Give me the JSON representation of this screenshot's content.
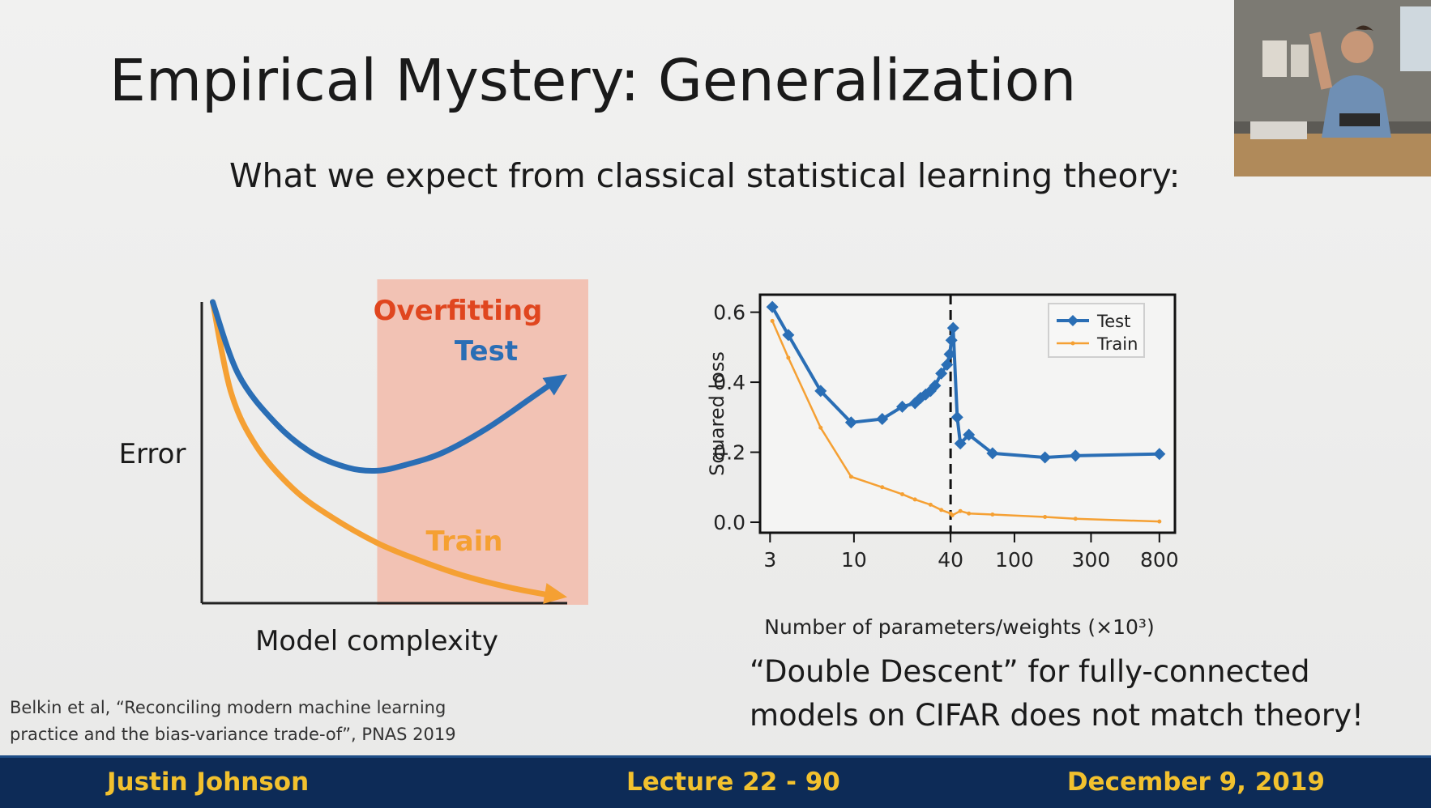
{
  "slide": {
    "title": "Empirical Mystery: Generalization",
    "subtitle": "What we expect from classical statistical learning theory:",
    "citation_line1": "Belkin et al, “Reconciling modern machine learning",
    "citation_line2": "practice and the bias-variance trade-of”, PNAS 2019",
    "caption_line1": "“Double Descent” for fully-connected",
    "caption_line2": "models on CIFAR does not match theory!"
  },
  "footer": {
    "author": "Justin Johnson",
    "lecture": "Lecture 22 - 90",
    "date": "December 9, 2019"
  },
  "colors": {
    "test_blue": "#2a6eb5",
    "train_orange": "#f5a033",
    "overfit_shade": "#f2c2b4",
    "overfit_label": "#e0461f",
    "footer_bg": "#0d2b57",
    "footer_text": "#f2c12e"
  },
  "chart_data": [
    {
      "type": "line",
      "title": "",
      "xlabel": "Model complexity",
      "ylabel": "Error",
      "annotations": [
        "Overfitting",
        "Test",
        "Train"
      ],
      "region": {
        "label": "Overfitting",
        "x_range": [
          0.48,
          1.0
        ]
      },
      "xlim": [
        0,
        1
      ],
      "ylim": [
        0,
        1
      ],
      "series": [
        {
          "name": "Test",
          "x": [
            0.03,
            0.1,
            0.2,
            0.3,
            0.4,
            0.48,
            0.56,
            0.66,
            0.78,
            0.9,
            1.0
          ],
          "y": [
            1.0,
            0.76,
            0.6,
            0.5,
            0.45,
            0.44,
            0.46,
            0.5,
            0.58,
            0.68,
            0.76
          ]
        },
        {
          "name": "Train",
          "x": [
            0.03,
            0.08,
            0.15,
            0.25,
            0.35,
            0.48,
            0.6,
            0.72,
            0.85,
            1.0
          ],
          "y": [
            1.0,
            0.7,
            0.52,
            0.38,
            0.29,
            0.2,
            0.14,
            0.09,
            0.05,
            0.02
          ]
        }
      ]
    },
    {
      "type": "line",
      "title": "",
      "xlabel": "Number of parameters/weights (×10³)",
      "ylabel": "Squared loss",
      "x_scale": "log",
      "xlim": [
        2.6,
        1000
      ],
      "ylim": [
        -0.03,
        0.65
      ],
      "xticks": [
        3,
        10,
        40,
        100,
        300,
        800
      ],
      "xtick_labels": [
        "3",
        "10",
        "40",
        "100",
        "300",
        "800"
      ],
      "yticks": [
        0.0,
        0.2,
        0.4,
        0.6
      ],
      "ytick_labels": [
        "0.0",
        "0.2",
        "0.4",
        "0.6"
      ],
      "legend_position": "top-right",
      "interpolation_threshold_x": 40,
      "series": [
        {
          "name": "Test",
          "x": [
            3.1,
            3.9,
            6.2,
            9.6,
            15,
            20,
            24,
            26,
            28,
            30,
            32,
            35,
            38,
            39.5,
            40.5,
            41.5,
            44,
            46,
            52,
            73,
            155,
            240,
            800
          ],
          "y": [
            0.615,
            0.535,
            0.375,
            0.285,
            0.295,
            0.33,
            0.34,
            0.355,
            0.365,
            0.375,
            0.39,
            0.425,
            0.45,
            0.48,
            0.52,
            0.555,
            0.3,
            0.225,
            0.25,
            0.197,
            0.185,
            0.19,
            0.195
          ]
        },
        {
          "name": "Train",
          "x": [
            3.1,
            3.9,
            6.2,
            9.6,
            15,
            20,
            24,
            30,
            35,
            40,
            41,
            46,
            52,
            73,
            155,
            240,
            800
          ],
          "y": [
            0.575,
            0.47,
            0.27,
            0.13,
            0.1,
            0.08,
            0.065,
            0.05,
            0.035,
            0.025,
            0.02,
            0.032,
            0.025,
            0.022,
            0.015,
            0.01,
            0.002
          ]
        }
      ]
    }
  ]
}
